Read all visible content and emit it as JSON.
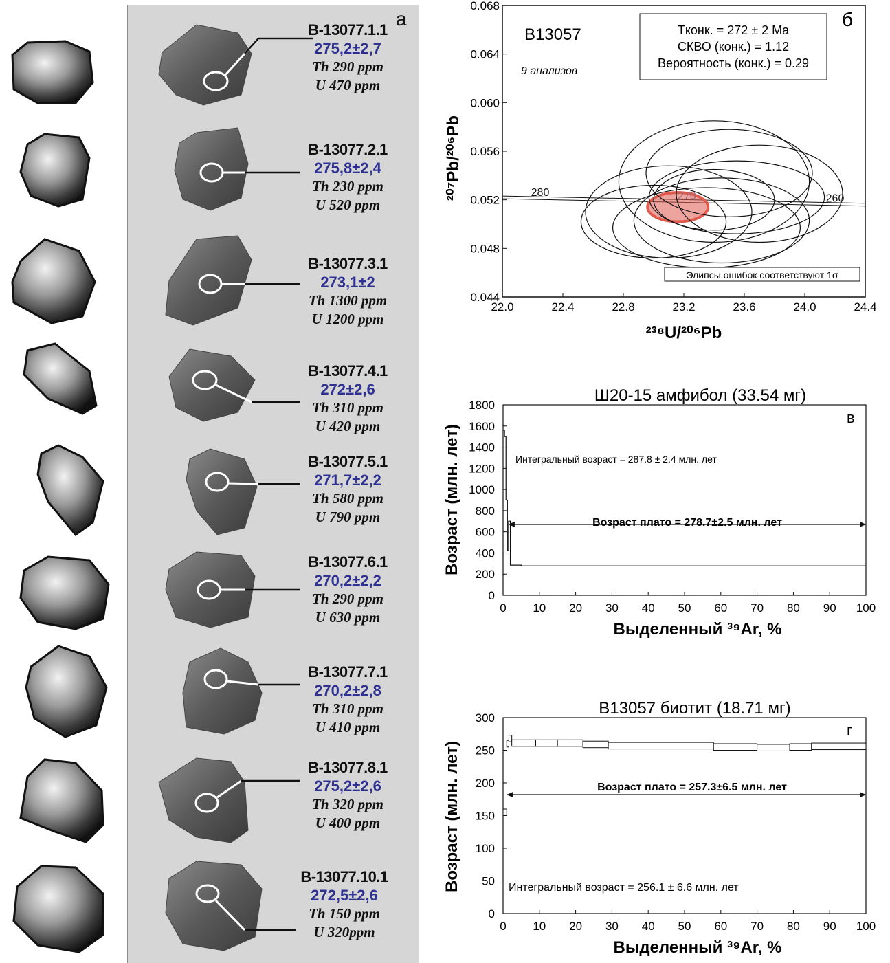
{
  "panel_a": {
    "letter": "а",
    "grains": [
      {
        "id": "B-13077.1.1",
        "age": "275,2±2,7",
        "th": "Th 290 ppm",
        "u": "U 470 ppm"
      },
      {
        "id": "B-13077.2.1",
        "age": "275,8±2,4",
        "th": "Th 230 ppm",
        "u": "U 520 ppm"
      },
      {
        "id": "B-13077.3.1",
        "age": "273,1±2",
        "th": "Th 1300 ppm",
        "u": "U 1200 ppm"
      },
      {
        "id": "B-13077.4.1",
        "age": "272±2,6",
        "th": "Th 310 ppm",
        "u": "U 420 ppm"
      },
      {
        "id": "B-13077.5.1",
        "age": "271,7±2,2",
        "th": "Th 580 ppm",
        "u": "U 790 ppm"
      },
      {
        "id": "B-13077.6.1",
        "age": "270,2±2,2",
        "th": "Th 290 ppm",
        "u": "U 630 ppm"
      },
      {
        "id": "B-13077.7.1",
        "age": "270,2±2,8",
        "th": "Th 310 ppm",
        "u": "U 410 ppm"
      },
      {
        "id": "B-13077.8.1",
        "age": "275,2±2,6",
        "th": "Th 320 ppm",
        "u": "U 400 ppm"
      },
      {
        "id": "B-13077.10.1",
        "age": "272,5±2,6",
        "th": "Th 150 ppm",
        "u": "U 320ppm"
      }
    ]
  },
  "chart_data": [
    {
      "type": "scatter",
      "panel_letter": "б",
      "sample": "B13057",
      "n_analyses": "9 анализов",
      "stats": [
        "Tконк. = 272 ± 2 Ma",
        "СКВО (конк.) = 1.12",
        "Вероятность (конк.) = 0.29"
      ],
      "xlabel": "²³⁸U/²⁰⁶Pb",
      "ylabel": "²⁰⁷Pb/²⁰⁶Pb",
      "xlim": [
        22.0,
        24.4
      ],
      "ylim": [
        0.044,
        0.068
      ],
      "xticks": [
        "22.0",
        "22.4",
        "22.8",
        "23.2",
        "23.6",
        "24.0",
        "24.4"
      ],
      "yticks": [
        "0.044",
        "0.048",
        "0.052",
        "0.056",
        "0.060",
        "0.064",
        "0.068"
      ],
      "concordia_line": [
        [
          22.0,
          0.0522
        ],
        [
          24.4,
          0.0516
        ]
      ],
      "concordia_labels": [
        {
          "text": "280",
          "x": 22.25,
          "y": 0.0521
        },
        {
          "text": "270",
          "x": 23.22,
          "y": 0.0518
        },
        {
          "text": "260",
          "x": 24.2,
          "y": 0.0516
        }
      ],
      "ellipses": [
        {
          "cx": 23.4,
          "cy": 0.0535,
          "rx": 0.63,
          "ry": 0.005
        },
        {
          "cx": 23.5,
          "cy": 0.0542,
          "rx": 0.55,
          "ry": 0.0036
        },
        {
          "cx": 23.7,
          "cy": 0.0525,
          "rx": 0.55,
          "ry": 0.004
        },
        {
          "cx": 23.55,
          "cy": 0.0522,
          "rx": 0.58,
          "ry": 0.003
        },
        {
          "cx": 23.1,
          "cy": 0.051,
          "rx": 0.55,
          "ry": 0.0038
        },
        {
          "cx": 23.0,
          "cy": 0.0502,
          "rx": 0.48,
          "ry": 0.003
        },
        {
          "cx": 23.45,
          "cy": 0.0503,
          "rx": 0.58,
          "ry": 0.0035
        },
        {
          "cx": 23.35,
          "cy": 0.0497,
          "rx": 0.62,
          "ry": 0.0033
        },
        {
          "cx": 23.4,
          "cy": 0.052,
          "rx": 0.4,
          "ry": 0.0025
        }
      ],
      "mean_ellipse": {
        "cx": 23.16,
        "cy": 0.0514,
        "rx": 0.2,
        "ry": 0.0012,
        "color": "#e05a4e"
      },
      "note": "Элипсы ошибок соответствуют 1σ"
    },
    {
      "type": "line",
      "panel_letter": "в",
      "title": "Ш20-15 амфибол (33.54 мг)",
      "xlabel": "Выделенный ³⁹Ar, %",
      "ylabel": "Возраст (млн. лет)",
      "xlim": [
        0,
        100
      ],
      "ylim": [
        0,
        1800
      ],
      "xticks": [
        "0",
        "10",
        "20",
        "30",
        "40",
        "50",
        "60",
        "70",
        "80",
        "90",
        "100"
      ],
      "yticks": [
        "0",
        "200",
        "400",
        "600",
        "800",
        "1000",
        "1200",
        "1400",
        "1600",
        "1800"
      ],
      "steps": [
        [
          0,
          0.4,
          1560
        ],
        [
          0.4,
          0.8,
          1500
        ],
        [
          0.8,
          1.2,
          900
        ],
        [
          1.2,
          1.5,
          420
        ],
        [
          1.5,
          2.0,
          700
        ],
        [
          2.0,
          5.0,
          285
        ],
        [
          5.0,
          100,
          278
        ]
      ],
      "integral_text": "Интегральный возраст = 287.8 ± 2.4 млн. лет",
      "plateau_text": "Возраст плато = 278.7±2.5 млн. лет",
      "plateau_range": [
        1.5,
        100
      ],
      "plateau_arrow_y": 670
    },
    {
      "type": "line",
      "panel_letter": "г",
      "title": "B13057 биотит (18.71 мг)",
      "xlabel": "Выделенный ³⁹Ar, %",
      "ylabel": "Возраст (млн. лет)",
      "xlim": [
        0,
        100
      ],
      "ylim": [
        0,
        300
      ],
      "xticks": [
        "0",
        "10",
        "20",
        "30",
        "40",
        "50",
        "60",
        "70",
        "80",
        "90",
        "100"
      ],
      "yticks": [
        "0",
        "50",
        "100",
        "150",
        "200",
        "250",
        "300"
      ],
      "steps": [
        [
          0,
          1.0,
          155
        ],
        [
          1.0,
          1.6,
          260
        ],
        [
          1.6,
          2.4,
          268
        ],
        [
          2.4,
          9,
          261
        ],
        [
          9,
          15,
          261
        ],
        [
          15,
          22,
          261
        ],
        [
          22,
          29,
          259
        ],
        [
          29,
          58,
          257
        ],
        [
          58,
          70,
          255
        ],
        [
          70,
          79,
          254
        ],
        [
          79,
          85,
          255
        ],
        [
          85,
          100,
          256
        ]
      ],
      "step_error": 5,
      "integral_text": "Интегральный возраст = 256.1 ± 6.6 млн. лет",
      "plateau_text": "Возраст плато = 257.3±6.5 млн. лет",
      "plateau_range": [
        1.0,
        100
      ],
      "plateau_arrow_y": 182
    }
  ]
}
